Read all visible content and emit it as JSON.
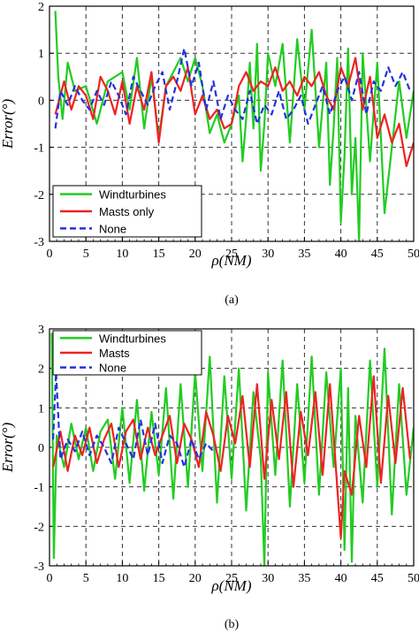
{
  "colors": {
    "windturbines": "#22cc22",
    "masts": "#ee2222",
    "none": "#2233dd",
    "grid": "#333333"
  },
  "chart_data": [
    {
      "type": "line",
      "panel_label": "(a)",
      "xlabel": "ρ(NM)",
      "ylabel": "Error(°)",
      "xlim": [
        0,
        50
      ],
      "ylim": [
        -3,
        2
      ],
      "xticks": [
        "0",
        "5",
        "10",
        "15",
        "20",
        "25",
        "30",
        "35",
        "40",
        "45",
        "50"
      ],
      "yticks": [
        "2",
        "1",
        "0",
        "-1",
        "-2",
        "-3"
      ],
      "grid": true,
      "legend_position": "bottom-left",
      "series": [
        {
          "name": "Windturbines",
          "style": "solid",
          "color": "#22cc22",
          "x": [
            0.8,
            1.2,
            1.8,
            2.5,
            3.5,
            5,
            6.5,
            8,
            10,
            11,
            12,
            13,
            14,
            15,
            16,
            17,
            18,
            19,
            20,
            21,
            22,
            23,
            24,
            25,
            26,
            26.5,
            27,
            27.5,
            28,
            28.5,
            29,
            29.5,
            30,
            31,
            32,
            33,
            34,
            35,
            36,
            37,
            38,
            38.5,
            39,
            39.5,
            40,
            40.5,
            41,
            41.5,
            42,
            42.5,
            43,
            44,
            45,
            46,
            47,
            48,
            49,
            50
          ],
          "y": [
            1.9,
            0.5,
            -0.4,
            0.8,
            0.2,
            0.3,
            -0.5,
            0.4,
            0.6,
            -0.2,
            0.9,
            -0.6,
            0.5,
            -0.8,
            0.3,
            0.6,
            0.9,
            0.4,
            0.9,
            0.3,
            -0.7,
            -0.3,
            -0.9,
            -0.5,
            0.1,
            -1.3,
            -0.4,
            0.8,
            -0.6,
            1.2,
            -1.5,
            -0.5,
            1.0,
            0.3,
            1.2,
            -0.9,
            1.3,
            -0.2,
            1.5,
            -1.0,
            0.8,
            -1.8,
            -0.6,
            0.9,
            -2.6,
            -1.2,
            1.1,
            -2.0,
            -0.8,
            -3.0,
            1.0,
            -1.3,
            0.8,
            -2.4,
            -1.0,
            0.4,
            -0.8,
            0.2
          ]
        },
        {
          "name": "Masts only",
          "style": "solid",
          "color": "#ee2222",
          "x": [
            0.8,
            2,
            3,
            4,
            5,
            6,
            7,
            8,
            9,
            10,
            11,
            12,
            13,
            14,
            15,
            16,
            17,
            18,
            19,
            20,
            21,
            22,
            23,
            24,
            25,
            26,
            27,
            28,
            29,
            30,
            31,
            32,
            33,
            34,
            35,
            36,
            37,
            38,
            39,
            40,
            41,
            42,
            43,
            44,
            45,
            46,
            47,
            48,
            49,
            50
          ],
          "y": [
            -0.3,
            0.4,
            -0.2,
            0.3,
            0.1,
            -0.4,
            0.5,
            0.2,
            -0.3,
            0.4,
            -0.5,
            0.3,
            -0.2,
            0.6,
            -0.9,
            0.3,
            0.5,
            0.2,
            0.7,
            -0.3,
            0.1,
            -0.4,
            -0.2,
            -0.6,
            -0.5,
            0.3,
            0.6,
            0.2,
            0.4,
            0.3,
            0.7,
            0.2,
            0.4,
            0.1,
            0.5,
            0.3,
            0.6,
            0.1,
            -0.2,
            0.7,
            0.3,
            0.9,
            -0.2,
            0.5,
            -0.8,
            -0.3,
            -0.9,
            -0.5,
            -1.4,
            -0.9
          ]
        },
        {
          "name": "None",
          "style": "dashed",
          "color": "#2233dd",
          "x": [
            0.8,
            1.5,
            2.5,
            3.5,
            4.5,
            5.5,
            6.5,
            7.5,
            8.5,
            9.5,
            10.5,
            11.5,
            12.5,
            13.5,
            14.5,
            15.5,
            16.5,
            17.5,
            18.5,
            19.5,
            20.5,
            21.5,
            22.5,
            23.5,
            24.5,
            25.5,
            26.5,
            27.5,
            28.5,
            29.5,
            30.5,
            31.5,
            32.5,
            33.5,
            34.5,
            35.5,
            36.5,
            37.5,
            38.5,
            39.5,
            40.5,
            41.5,
            42.5,
            43.5,
            44.5,
            45.5,
            46.5,
            47.5,
            48.5,
            49.5
          ],
          "y": [
            -0.6,
            0.2,
            -0.1,
            0.3,
            0.0,
            -0.2,
            0.2,
            -0.1,
            0.4,
            0.1,
            -0.3,
            0.5,
            0.2,
            -0.1,
            0.3,
            0.6,
            -0.2,
            0.4,
            1.1,
            0.3,
            0.8,
            -0.2,
            0.4,
            -0.4,
            0.1,
            -0.2,
            -0.4,
            0.2,
            -0.5,
            -0.1,
            -0.3,
            0.2,
            -0.4,
            -0.2,
            0.1,
            -0.5,
            -0.1,
            0.3,
            -0.3,
            0.2,
            0.5,
            0.0,
            0.6,
            -0.3,
            0.4,
            0.2,
            0.7,
            0.3,
            0.6,
            0.2
          ]
        }
      ]
    },
    {
      "type": "line",
      "panel_label": "(b)",
      "xlabel": "ρ(NM)",
      "ylabel": "Error(°)",
      "xlim": [
        0,
        50
      ],
      "ylim": [
        -3,
        3
      ],
      "xticks": [
        "0",
        "5",
        "10",
        "15",
        "20",
        "25",
        "30",
        "35",
        "40",
        "45",
        "50"
      ],
      "yticks": [
        "3",
        "2",
        "1",
        "0",
        "-1",
        "-2",
        "-3"
      ],
      "grid": true,
      "legend_position": "top-left",
      "series": [
        {
          "name": "Windturbines",
          "style": "solid",
          "color": "#22cc22",
          "x": [
            0.3,
            0.6,
            1,
            2,
            3,
            4,
            5,
            6,
            7,
            8,
            9,
            10,
            11,
            12,
            13,
            14,
            15,
            16,
            17,
            18,
            19,
            20,
            21,
            22,
            23,
            24,
            25,
            26,
            27,
            28,
            29,
            29.5,
            30,
            31,
            32,
            33,
            34,
            35,
            36,
            37,
            38,
            39,
            40,
            40.5,
            41,
            41.5,
            42,
            43,
            44,
            45,
            46,
            47,
            48,
            49,
            50
          ],
          "y": [
            2.9,
            -2.8,
            0.3,
            -0.5,
            0.6,
            -0.3,
            0.5,
            -0.6,
            0.4,
            0.7,
            -0.8,
            1.0,
            -0.9,
            1.2,
            -1.1,
            0.9,
            -0.7,
            1.5,
            -1.3,
            1.6,
            -1.0,
            1.9,
            -0.6,
            2.3,
            -1.4,
            1.8,
            -0.8,
            2.0,
            -1.6,
            1.4,
            -0.3,
            -3.0,
            1.9,
            -0.7,
            2.2,
            -1.5,
            1.6,
            -0.9,
            2.3,
            -1.2,
            1.9,
            -0.5,
            2.0,
            -2.6,
            1.5,
            -2.9,
            0.8,
            -1.4,
            2.2,
            -1.0,
            2.5,
            -1.7,
            1.6,
            -1.2,
            0.5
          ]
        },
        {
          "name": "Masts",
          "style": "solid",
          "color": "#ee2222",
          "x": [
            0.5,
            1.5,
            2.5,
            3.5,
            4.5,
            5.5,
            6.5,
            7.5,
            8.5,
            9.5,
            10.5,
            11.5,
            12.5,
            13.5,
            14.5,
            15.5,
            16.5,
            17.5,
            18.5,
            19.5,
            20.5,
            21.5,
            22.5,
            23.5,
            24.5,
            25.5,
            26.5,
            27.5,
            28.5,
            29.5,
            30.5,
            31.5,
            32.5,
            33.5,
            34.5,
            35.5,
            36.5,
            37.5,
            38.5,
            39.5,
            40,
            40.5,
            41.5,
            42.5,
            43.5,
            44.5,
            45.5,
            46.5,
            47.5,
            48.5,
            49.5
          ],
          "y": [
            -0.5,
            0.4,
            -0.6,
            0.3,
            -0.2,
            0.5,
            -0.4,
            0.2,
            0.6,
            -0.5,
            0.4,
            0.7,
            -0.3,
            0.5,
            -0.2,
            0.3,
            0.8,
            -0.4,
            0.6,
            0.2,
            -0.5,
            0.9,
            0.3,
            -0.6,
            0.8,
            0.1,
            1.3,
            -0.5,
            1.6,
            -0.8,
            1.2,
            -0.3,
            1.4,
            -1.0,
            0.9,
            -0.2,
            1.4,
            -0.7,
            1.6,
            -1.0,
            -2.3,
            -0.6,
            -1.2,
            0.8,
            -0.5,
            1.8,
            -0.9,
            1.3,
            -0.4,
            1.5,
            -0.3
          ]
        },
        {
          "name": "None",
          "style": "dashed",
          "color": "#2233dd",
          "x": [
            0.5,
            0.9,
            1.5,
            2.5,
            3.5,
            4.5,
            5.5,
            6.5,
            7.5,
            8.5,
            9.5,
            10.5,
            11.5,
            12.5,
            13.5,
            14.5,
            15.5,
            16.5,
            17.5,
            18.5,
            19.5,
            20.5,
            21.5,
            22.5
          ],
          "y": [
            0.2,
            1.9,
            -0.3,
            0.2,
            -0.1,
            0.4,
            -0.2,
            0.3,
            0.0,
            -0.4,
            0.5,
            0.1,
            -0.3,
            0.7,
            -0.2,
            0.6,
            -0.4,
            0.3,
            0.1,
            -0.5,
            0.2,
            -0.3,
            0.1,
            -0.1
          ]
        }
      ]
    }
  ]
}
